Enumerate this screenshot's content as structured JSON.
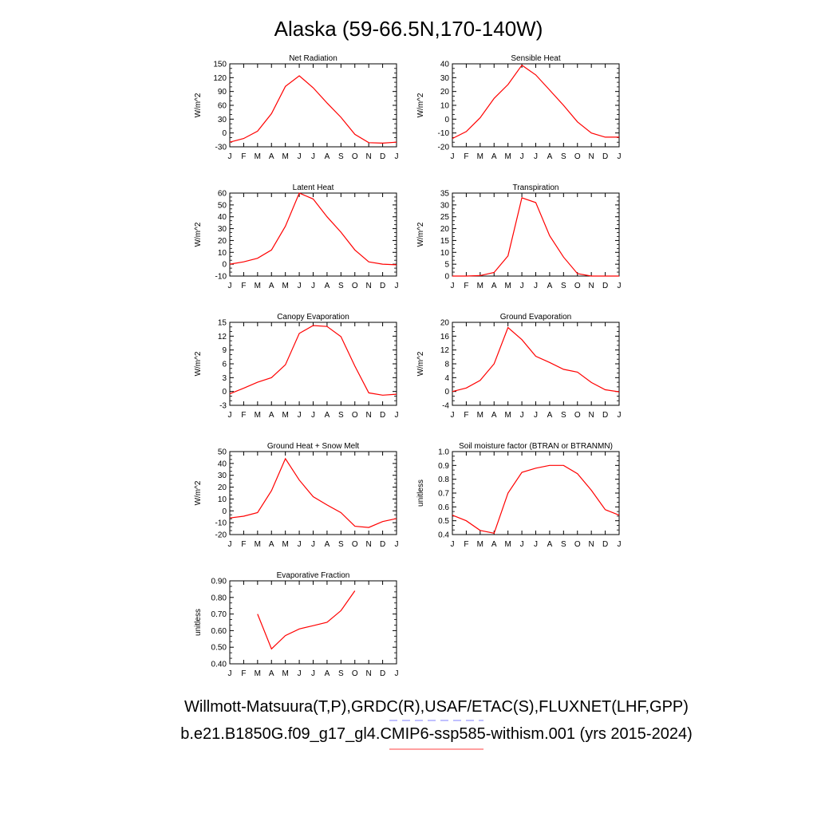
{
  "title": "Alaska (59-66.5N,170-140W)",
  "colors": {
    "model_line": "#ff0000",
    "obs_legend_line": "#8080ff",
    "model_legend_line": "#ff8080",
    "axis": "#000000"
  },
  "legend": {
    "obs_label": "Willmott-Matsuura(T,P),GRDC(R),USAF/ETAC(S),FLUXNET(LHF,GPP)",
    "model_label": "b.e21.B1850G.f09_g17_gl4.CMIP6-ssp585-withism.001 (yrs 2015-2024)"
  },
  "chart_data": [
    {
      "type": "line",
      "title": "Net Radiation",
      "ylabel": "W/m^2",
      "categories": [
        "J",
        "F",
        "M",
        "A",
        "M",
        "J",
        "J",
        "A",
        "S",
        "O",
        "N",
        "D",
        "J"
      ],
      "ylim": [
        -30,
        150
      ],
      "yticks": [
        "-30",
        "0",
        "30",
        "60",
        "90",
        "120",
        "150"
      ],
      "values": [
        -20,
        -12,
        4,
        42,
        101,
        124,
        98,
        65,
        34,
        -3,
        -21,
        -22,
        -20
      ]
    },
    {
      "type": "line",
      "title": "Sensible Heat",
      "ylabel": "W/m^2",
      "categories": [
        "J",
        "F",
        "M",
        "A",
        "M",
        "J",
        "J",
        "A",
        "S",
        "O",
        "N",
        "D",
        "J"
      ],
      "ylim": [
        -20,
        40
      ],
      "yticks": [
        "-20",
        "-10",
        "0",
        "10",
        "20",
        "30",
        "40"
      ],
      "values": [
        -14,
        -9,
        1,
        15,
        25,
        39,
        32,
        21,
        10,
        -2,
        -10,
        -13,
        -13
      ]
    },
    {
      "type": "line",
      "title": "Latent Heat",
      "ylabel": "W/m^2",
      "categories": [
        "J",
        "F",
        "M",
        "A",
        "M",
        "J",
        "J",
        "A",
        "S",
        "O",
        "N",
        "D",
        "J"
      ],
      "ylim": [
        -10,
        60
      ],
      "yticks": [
        "-10",
        "0",
        "10",
        "20",
        "30",
        "40",
        "50",
        "60"
      ],
      "values": [
        0,
        2,
        5,
        12,
        32,
        60,
        55,
        40,
        27,
        12,
        2,
        0,
        -0.5
      ]
    },
    {
      "type": "line",
      "title": "Transpiration",
      "ylabel": "W/m^2",
      "categories": [
        "J",
        "F",
        "M",
        "A",
        "M",
        "J",
        "J",
        "A",
        "S",
        "O",
        "N",
        "D",
        "J"
      ],
      "ylim": [
        0,
        35
      ],
      "yticks": [
        "0",
        "5",
        "10",
        "15",
        "20",
        "25",
        "30",
        "35"
      ],
      "values": [
        0,
        0,
        0.2,
        1.5,
        8.5,
        33,
        31,
        17,
        8,
        1,
        0,
        0,
        0
      ]
    },
    {
      "type": "line",
      "title": "Canopy Evaporation",
      "ylabel": "W/m^2",
      "categories": [
        "J",
        "F",
        "M",
        "A",
        "M",
        "J",
        "J",
        "A",
        "S",
        "O",
        "N",
        "D",
        "J"
      ],
      "ylim": [
        -3,
        15
      ],
      "yticks": [
        "-3",
        "0",
        "3",
        "6",
        "9",
        "12",
        "15"
      ],
      "values": [
        -0.5,
        0.7,
        2,
        3,
        5.8,
        12.6,
        14.3,
        14.1,
        11.9,
        5.5,
        -0.3,
        -0.8,
        -0.6
      ]
    },
    {
      "type": "line",
      "title": "Ground Evaporation",
      "ylabel": "W/m^2",
      "categories": [
        "J",
        "F",
        "M",
        "A",
        "M",
        "J",
        "J",
        "A",
        "S",
        "O",
        "N",
        "D",
        "J"
      ],
      "ylim": [
        -4,
        20
      ],
      "yticks": [
        "-4",
        "0",
        "4",
        "8",
        "12",
        "16",
        "20"
      ],
      "values": [
        0,
        1,
        3.2,
        8,
        18.5,
        15,
        10.2,
        8.4,
        6.4,
        5.6,
        2.6,
        0.5,
        -0.1
      ]
    },
    {
      "type": "line",
      "title": "Ground Heat + Snow Melt",
      "ylabel": "W/m^2",
      "categories": [
        "J",
        "F",
        "M",
        "A",
        "M",
        "J",
        "J",
        "A",
        "S",
        "O",
        "N",
        "D",
        "J"
      ],
      "ylim": [
        -20,
        50
      ],
      "yticks": [
        "-20",
        "-10",
        "0",
        "10",
        "20",
        "30",
        "40",
        "50"
      ],
      "values": [
        -6,
        -4.5,
        -1.5,
        17,
        44,
        26,
        12,
        5,
        -1.5,
        -13,
        -14,
        -9,
        -6.5
      ]
    },
    {
      "type": "line",
      "title": "Soil moisture factor (BTRAN or BTRANMN)",
      "ylabel": "unitless",
      "categories": [
        "J",
        "F",
        "M",
        "A",
        "M",
        "J",
        "J",
        "A",
        "S",
        "O",
        "N",
        "D",
        "J"
      ],
      "ylim": [
        0.4,
        1.0
      ],
      "yticks": [
        "0.4",
        "0.5",
        "0.6",
        "0.7",
        "0.8",
        "0.9",
        "1.0"
      ],
      "values": [
        0.54,
        0.5,
        0.43,
        0.41,
        0.7,
        0.85,
        0.88,
        0.9,
        0.9,
        0.84,
        0.72,
        0.58,
        0.54
      ]
    },
    {
      "type": "line",
      "title": "Evaporative Fraction",
      "ylabel": "unitless",
      "categories": [
        "J",
        "F",
        "M",
        "A",
        "M",
        "J",
        "J",
        "A",
        "S",
        "O",
        "N",
        "D",
        "J"
      ],
      "ylim": [
        0.4,
        0.9
      ],
      "yticks": [
        "0.40",
        "0.50",
        "0.60",
        "0.70",
        "0.80",
        "0.90"
      ],
      "values": [
        null,
        null,
        0.7,
        0.49,
        0.57,
        0.61,
        0.63,
        0.65,
        0.72,
        0.84,
        null,
        null,
        null
      ]
    }
  ]
}
